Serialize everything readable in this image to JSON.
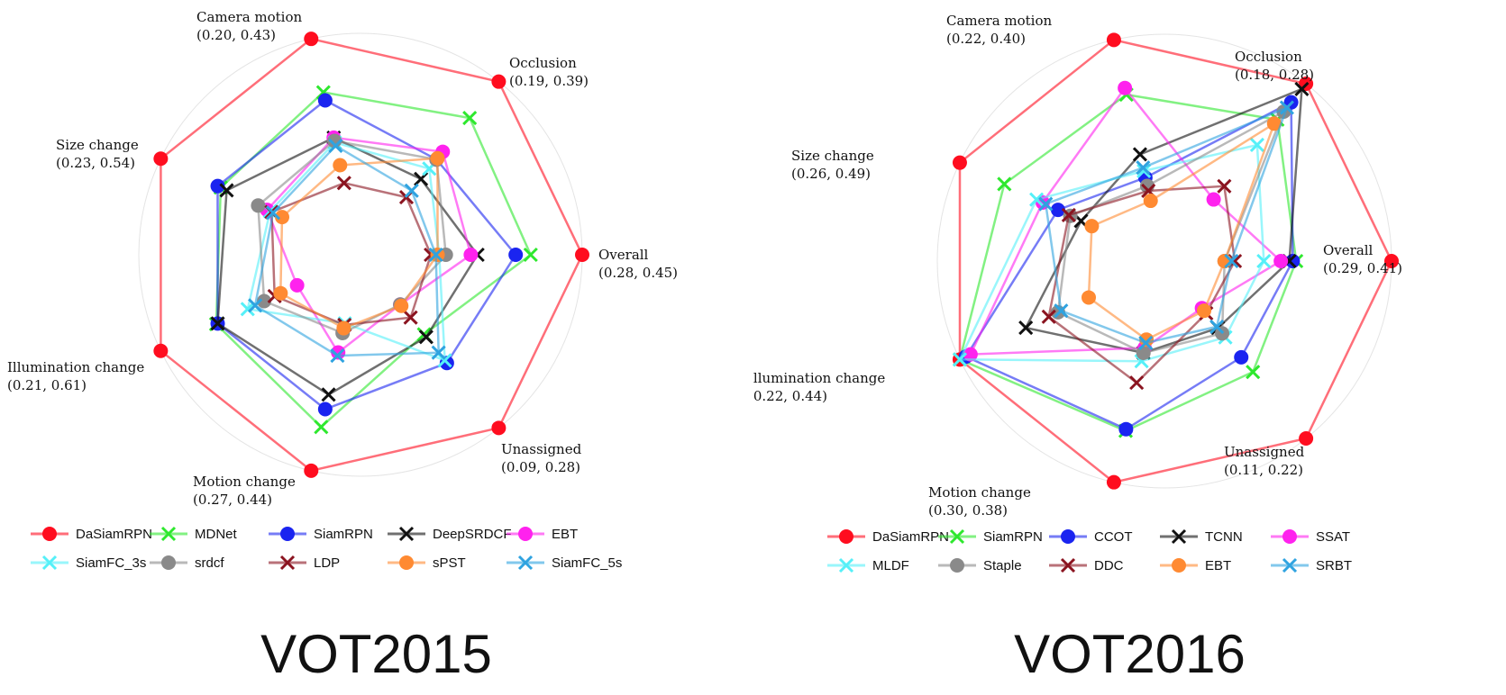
{
  "chart_data": [
    {
      "type": "radar",
      "title": "VOT2015",
      "axes": [
        {
          "label": "Overall",
          "range_text": "(0.28, 0.45)",
          "range": [
            0.28,
            0.45
          ]
        },
        {
          "label": "Occlusion",
          "range_text": "(0.19, 0.39)",
          "range": [
            0.19,
            0.39
          ]
        },
        {
          "label": "Camera motion",
          "range_text": "(0.20, 0.43)",
          "range": [
            0.2,
            0.43
          ]
        },
        {
          "label": "Size change",
          "range_text": "(0.23, 0.54)",
          "range": [
            0.23,
            0.54
          ]
        },
        {
          "label": "Illumination change",
          "range_text": "(0.21, 0.61)",
          "range": [
            0.21,
            0.61
          ]
        },
        {
          "label": "Motion change",
          "range_text": "(0.27, 0.44)",
          "range": [
            0.27,
            0.44
          ]
        },
        {
          "label": "Unassigned",
          "range_text": "(0.09, 0.28)",
          "range": [
            0.09,
            0.28
          ]
        }
      ],
      "series": [
        {
          "name": "DaSiamRPN",
          "color": "#ff0d1f",
          "marker": "circle",
          "values": [
            1.0,
            1.0,
            1.0,
            1.0,
            1.0,
            1.0,
            1.0
          ]
        },
        {
          "name": "MDNet",
          "color": "#2ee82e",
          "marker": "x",
          "values": [
            0.69,
            0.72,
            0.67,
            0.6,
            0.63,
            0.73,
            0.28
          ]
        },
        {
          "name": "SiamRPN",
          "color": "#1a24f0",
          "marker": "circle",
          "values": [
            0.6,
            0.4,
            0.62,
            0.62,
            0.62,
            0.62,
            0.5
          ]
        },
        {
          "name": "DeepSRDCF",
          "color": "#111111",
          "marker": "x",
          "values": [
            0.37,
            0.25,
            0.39,
            0.56,
            0.62,
            0.53,
            0.3
          ]
        },
        {
          "name": "EBT",
          "color": "#ff22ee",
          "marker": "circle",
          "values": [
            0.33,
            0.46,
            0.39,
            0.29,
            0.09,
            0.27,
            0.05
          ]
        },
        {
          "name": "SiamFC_3s",
          "color": "#55f0f8",
          "marker": "x",
          "values": [
            0.14,
            0.33,
            0.36,
            0.27,
            0.42,
            0.09,
            0.48
          ]
        },
        {
          "name": "srdcf",
          "color": "#8a8a8a",
          "marker": "circle",
          "values": [
            0.18,
            0.4,
            0.37,
            0.35,
            0.31,
            0.15,
            0.05
          ]
        },
        {
          "name": "LDP",
          "color": "#8b1420",
          "marker": "x",
          "values": [
            0.09,
            0.11,
            0.11,
            0.26,
            0.24,
            0.1,
            0.15
          ]
        },
        {
          "name": "sPST",
          "color": "#ff8a32",
          "marker": "circle",
          "values": [
            0.13,
            0.41,
            0.22,
            0.19,
            0.2,
            0.12,
            0.06
          ]
        },
        {
          "name": "SiamFC_5s",
          "color": "#2fa3e0",
          "marker": "x",
          "values": [
            0.12,
            0.16,
            0.34,
            0.25,
            0.37,
            0.29,
            0.42
          ]
        }
      ]
    },
    {
      "type": "radar",
      "title": "VOT2016",
      "axes": [
        {
          "label": "Overall",
          "range_text": "(0.29, 0.41)",
          "range": [
            0.29,
            0.41
          ]
        },
        {
          "label": "Occlusion",
          "range_text": "(0.18, 0.28)",
          "range": [
            0.18,
            0.28
          ]
        },
        {
          "label": "Camera motion",
          "range_text": "(0.22, 0.40)",
          "range": [
            0.22,
            0.4
          ]
        },
        {
          "label": "Size change",
          "range_text": "(0.26, 0.49)",
          "range": [
            0.26,
            0.49
          ]
        },
        {
          "label": "Illumination change",
          "range_text": "(0.22, 0.44)",
          "range": [
            0.22,
            0.44
          ]
        },
        {
          "label": "Motion change",
          "range_text": "(0.30, 0.38)",
          "range": [
            0.3,
            0.38
          ]
        },
        {
          "label": "Unassigned",
          "range_text": "(0.11, 0.22)",
          "range": [
            0.11,
            0.22
          ]
        }
      ],
      "series": [
        {
          "name": "DaSiamRPN",
          "color": "#ff0d1f",
          "marker": "circle",
          "values": [
            1.0,
            1.0,
            1.0,
            1.0,
            1.0,
            1.0,
            1.0
          ]
        },
        {
          "name": "SiamRPN",
          "color": "#2ee82e",
          "marker": "x",
          "values": [
            0.44,
            0.73,
            0.67,
            0.71,
            1.0,
            0.69,
            0.5
          ]
        },
        {
          "name": "CCOT",
          "color": "#1a24f0",
          "marker": "circle",
          "values": [
            0.42,
            0.86,
            0.17,
            0.36,
            0.96,
            0.68,
            0.39
          ]
        },
        {
          "name": "TCNN",
          "color": "#111111",
          "marker": "x",
          "values": [
            0.4,
            0.96,
            0.31,
            0.21,
            0.57,
            0.22,
            0.17
          ]
        },
        {
          "name": "SSAT",
          "color": "#ff22ee",
          "marker": "circle",
          "values": [
            0.35,
            0.13,
            0.71,
            0.46,
            0.93,
            0.19,
            0.02
          ]
        },
        {
          "name": "MLDF",
          "color": "#55f0f8",
          "marker": "x",
          "values": [
            0.25,
            0.54,
            0.21,
            0.5,
            1.0,
            0.27,
            0.24
          ]
        },
        {
          "name": "Staple",
          "color": "#8a8a8a",
          "marker": "circle",
          "values": [
            0.02,
            0.79,
            0.12,
            0.28,
            0.36,
            0.22,
            0.21
          ]
        },
        {
          "name": "DDC",
          "color": "#8b1420",
          "marker": "x",
          "values": [
            0.08,
            0.23,
            0.09,
            0.29,
            0.42,
            0.4,
            0.06
          ]
        },
        {
          "name": "EBT",
          "color": "#ff8a32",
          "marker": "circle",
          "values": [
            0.02,
            0.7,
            0.03,
            0.14,
            0.16,
            0.14,
            0.04
          ]
        },
        {
          "name": "SRBT",
          "color": "#2fa3e0",
          "marker": "x",
          "values": [
            0.06,
            0.82,
            0.23,
            0.44,
            0.34,
            0.16,
            0.16
          ]
        }
      ]
    }
  ]
}
